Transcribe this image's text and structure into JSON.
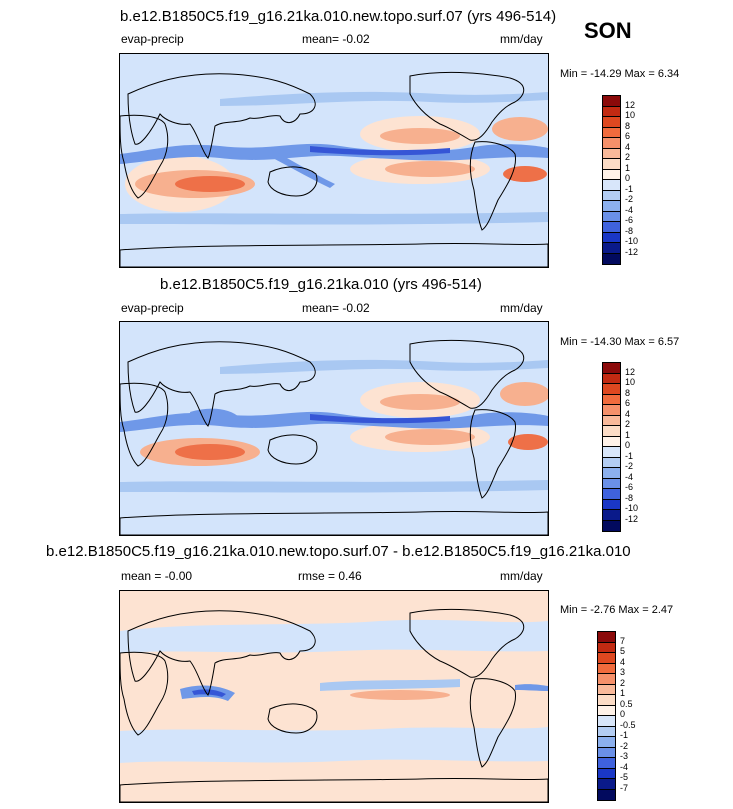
{
  "season": "SON",
  "panels": [
    {
      "title": "b.e12.B1850C5.f19_g16.21ka.010.new.topo.surf.07 (yrs 496-514)",
      "left_label": "evap-precip",
      "center_label": "mean=  -0.02",
      "units": "mm/day",
      "minmax": "Min = -14.29 Max =   6.34",
      "colorbar_labels": [
        "12",
        "10",
        "8",
        "6",
        "4",
        "2",
        "1",
        "0",
        "-1",
        "-2",
        "-4",
        "-6",
        "-8",
        "-10",
        "-12"
      ],
      "colors": [
        "#8b0a0a",
        "#c22a12",
        "#de4820",
        "#f06b3d",
        "#f5906a",
        "#f9b99a",
        "#fcdcc6",
        "#fff2e8",
        "#d8e6fa",
        "#b3cdf3",
        "#8cb0ee",
        "#6a90e8",
        "#3f62dd",
        "#1a37c6",
        "#0a1a8a",
        "#020a5e"
      ]
    },
    {
      "title": "b.e12.B1850C5.f19_g16.21ka.010 (yrs 496-514)",
      "left_label": "evap-precip",
      "center_label": "mean=  -0.02",
      "units": "mm/day",
      "minmax": "Min = -14.30 Max =   6.57",
      "colorbar_labels": [
        "12",
        "10",
        "8",
        "6",
        "4",
        "2",
        "1",
        "0",
        "-1",
        "-2",
        "-4",
        "-6",
        "-8",
        "-10",
        "-12"
      ],
      "colors": [
        "#8b0a0a",
        "#c22a12",
        "#de4820",
        "#f06b3d",
        "#f5906a",
        "#f9b99a",
        "#fcdcc6",
        "#fff2e8",
        "#d8e6fa",
        "#b3cdf3",
        "#8cb0ee",
        "#6a90e8",
        "#3f62dd",
        "#1a37c6",
        "#0a1a8a",
        "#020a5e"
      ]
    },
    {
      "title": "b.e12.B1850C5.f19_g16.21ka.010.new.topo.surf.07 - b.e12.B1850C5.f19_g16.21ka.010",
      "left_label": "mean =  -0.00",
      "center_label": "rmse =   0.46",
      "units": "mm/day",
      "minmax": "Min =  -2.76 Max =   2.47",
      "colorbar_labels": [
        "7",
        "5",
        "4",
        "3",
        "2",
        "1",
        "0.5",
        "0",
        "-0.5",
        "-1",
        "-2",
        "-3",
        "-4",
        "-5",
        "-7"
      ],
      "colors": [
        "#8b0a0a",
        "#c22a12",
        "#de4820",
        "#f06b3d",
        "#f5906a",
        "#f9b99a",
        "#fcdcc6",
        "#fff2e8",
        "#d8e6fa",
        "#b3cdf3",
        "#8cb0ee",
        "#6a90e8",
        "#3f62dd",
        "#1a37c6",
        "#0a1a8a",
        "#020a5e"
      ]
    }
  ],
  "map_colors": {
    "ocean_base": "#d3e4fb",
    "pos_light": "#fde3d2",
    "pos_mid": "#f7b08f",
    "pos_strong": "#ee7048",
    "neg_light": "#a9c8f2",
    "neg_mid": "#6f98e8",
    "neg_strong": "#3656d6",
    "coast": "#000000"
  }
}
